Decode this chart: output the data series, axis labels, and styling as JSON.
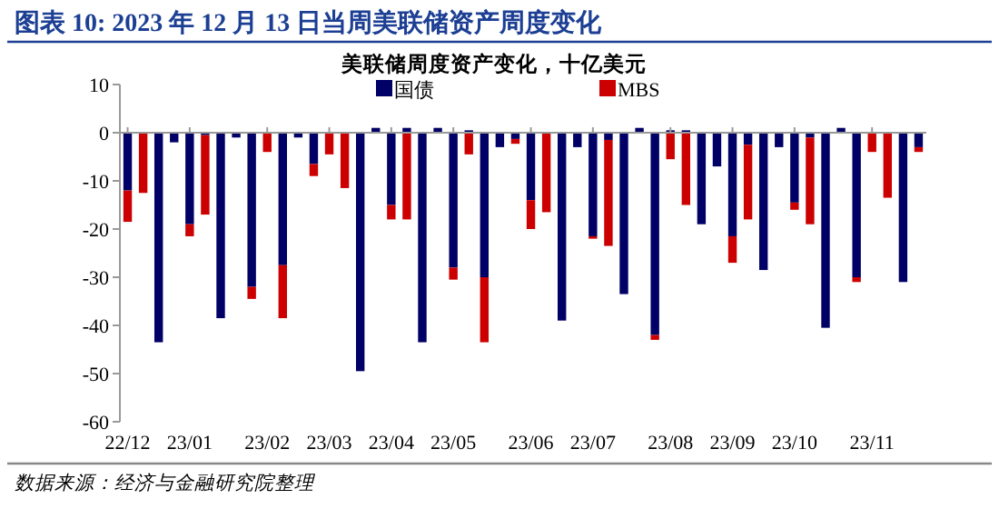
{
  "chart_data": {
    "type": "bar",
    "title": "图表 10:  2023 年 12 月 13 日当周美联储资产周度变化",
    "subtitle": "美联储周度资产变化，十亿美元",
    "annotations": [
      "数据来源：经济与金融研究院整理"
    ],
    "categories": [
      "22/12",
      null,
      null,
      null,
      "23/01",
      null,
      null,
      null,
      null,
      "23/02",
      null,
      null,
      null,
      "23/03",
      null,
      null,
      null,
      "23/04",
      null,
      null,
      null,
      "23/05",
      null,
      null,
      null,
      null,
      "23/06",
      null,
      null,
      null,
      "23/07",
      null,
      null,
      null,
      null,
      "23/08",
      null,
      null,
      null,
      "23/09",
      null,
      null,
      null,
      "23/10",
      null,
      null,
      null,
      null,
      "23/11",
      null,
      null,
      null
    ],
    "stacked": true,
    "legend": "top",
    "ylim": [
      -60,
      10
    ],
    "yticks": [
      -60,
      -50,
      -40,
      -30,
      -20,
      -10,
      0,
      10
    ],
    "series": [
      {
        "name": "国债",
        "color": "#000066",
        "values": [
          -12,
          0,
          -43.5,
          -2,
          -19,
          -0.5,
          -38.5,
          -1,
          -32,
          0,
          -27.5,
          -1,
          -6.5,
          0,
          0,
          -49.5,
          1,
          -15,
          1,
          -43.5,
          1,
          -28,
          0.5,
          -30,
          -3,
          -1.3,
          -14,
          0,
          -39,
          -3,
          -21.5,
          -1.5,
          -33.5,
          1,
          -42,
          0.5,
          0.5,
          -19,
          -7,
          -21.5,
          -2.5,
          -28.5,
          -3,
          -14.5,
          -1,
          -40.5,
          1,
          -30,
          0,
          0,
          -31,
          -3
        ]
      },
      {
        "name": "MBS",
        "color": "#cc0000",
        "values": [
          -6.5,
          -12.5,
          0,
          0,
          -2.5,
          -16.5,
          0,
          0,
          -2.5,
          -4,
          -11,
          0,
          -2.5,
          -4.5,
          -11.5,
          0,
          0,
          -3,
          -18,
          0,
          0,
          -2.5,
          -4.5,
          -13.5,
          0,
          -1,
          -6,
          -16.5,
          0,
          0,
          -0.5,
          -22,
          0,
          0,
          -1,
          -5.5,
          -15,
          0,
          0,
          -5.5,
          -15.5,
          0,
          0,
          -1.5,
          -18,
          0,
          0,
          -1,
          -4,
          -13.5,
          0,
          -1
        ]
      }
    ]
  }
}
